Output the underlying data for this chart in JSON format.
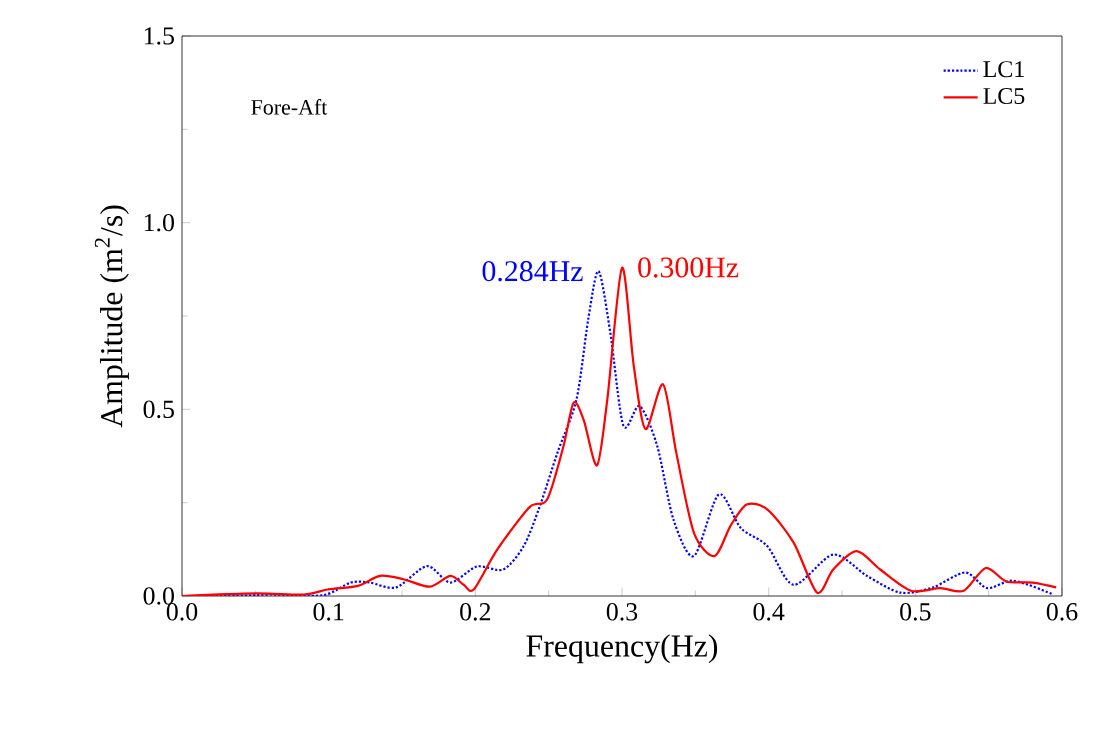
{
  "chart_data": {
    "type": "line",
    "xlabel": "Frequency(Hz)",
    "ylabel": "Amplitude (m$^{2}$/s)",
    "xlim": [
      0,
      0.6
    ],
    "ylim": [
      0,
      1.5
    ],
    "xticks": [
      {
        "value": 0,
        "label": "0.0"
      },
      0.1,
      0.2,
      0.3,
      0.4,
      0.5,
      0.6
    ],
    "yticks": [
      {
        "value": 0,
        "label": "0.0"
      },
      0.5,
      {
        "value": 1,
        "label": "1.0"
      },
      1.5
    ],
    "legend": "top right",
    "grid": false,
    "annotations": [
      {
        "text": "0.284Hz",
        "x": 0.284,
        "y": 0.87
      },
      {
        "text": "0.300Hz",
        "x": 0.3,
        "y": 0.88
      },
      "Fore-Aft"
    ],
    "series": [
      {
        "name": "LC1",
        "color": "#0000ff",
        "line_style": "dotted",
        "x": [
          0,
          0.037,
          0.06,
          0.096,
          0.115,
          0.128,
          0.146,
          0.167,
          0.183,
          0.201,
          0.219,
          0.233,
          0.244,
          0.256,
          0.269,
          0.277,
          0.284,
          0.292,
          0.301,
          0.312,
          0.324,
          0.335,
          0.349,
          0.366,
          0.381,
          0.399,
          0.417,
          0.444,
          0.467,
          0.49,
          0.512,
          0.534,
          0.549,
          0.567,
          0.594
        ],
        "values": [
          0,
          0,
          0.004,
          0.002,
          0.036,
          0.036,
          0.023,
          0.08,
          0.036,
          0.079,
          0.071,
          0.134,
          0.241,
          0.384,
          0.527,
          0.742,
          0.87,
          0.706,
          0.456,
          0.509,
          0.402,
          0.206,
          0.107,
          0.272,
          0.182,
          0.134,
          0.03,
          0.111,
          0.054,
          0.009,
          0.023,
          0.063,
          0.021,
          0.041,
          0.004
        ]
      },
      {
        "name": "LC5",
        "color": "#ff0000",
        "line_style": "solid",
        "x": [
          0,
          0.05,
          0.083,
          0.1,
          0.12,
          0.135,
          0.151,
          0.169,
          0.183,
          0.192,
          0.199,
          0.215,
          0.237,
          0.249,
          0.26,
          0.267,
          0.274,
          0.283,
          0.29,
          0.3,
          0.308,
          0.316,
          0.328,
          0.337,
          0.349,
          0.363,
          0.374,
          0.385,
          0.399,
          0.417,
          0.433,
          0.444,
          0.46,
          0.476,
          0.497,
          0.517,
          0.533,
          0.548,
          0.562,
          0.58,
          0.596
        ],
        "values": [
          0,
          0.007,
          0.004,
          0.018,
          0.027,
          0.054,
          0.045,
          0.025,
          0.054,
          0.03,
          0.018,
          0.125,
          0.238,
          0.259,
          0.4,
          0.518,
          0.47,
          0.35,
          0.527,
          0.879,
          0.617,
          0.447,
          0.567,
          0.384,
          0.17,
          0.107,
          0.188,
          0.245,
          0.232,
          0.143,
          0.009,
          0.071,
          0.12,
          0.071,
          0.014,
          0.021,
          0.014,
          0.075,
          0.039,
          0.036,
          0.023
        ]
      }
    ]
  }
}
